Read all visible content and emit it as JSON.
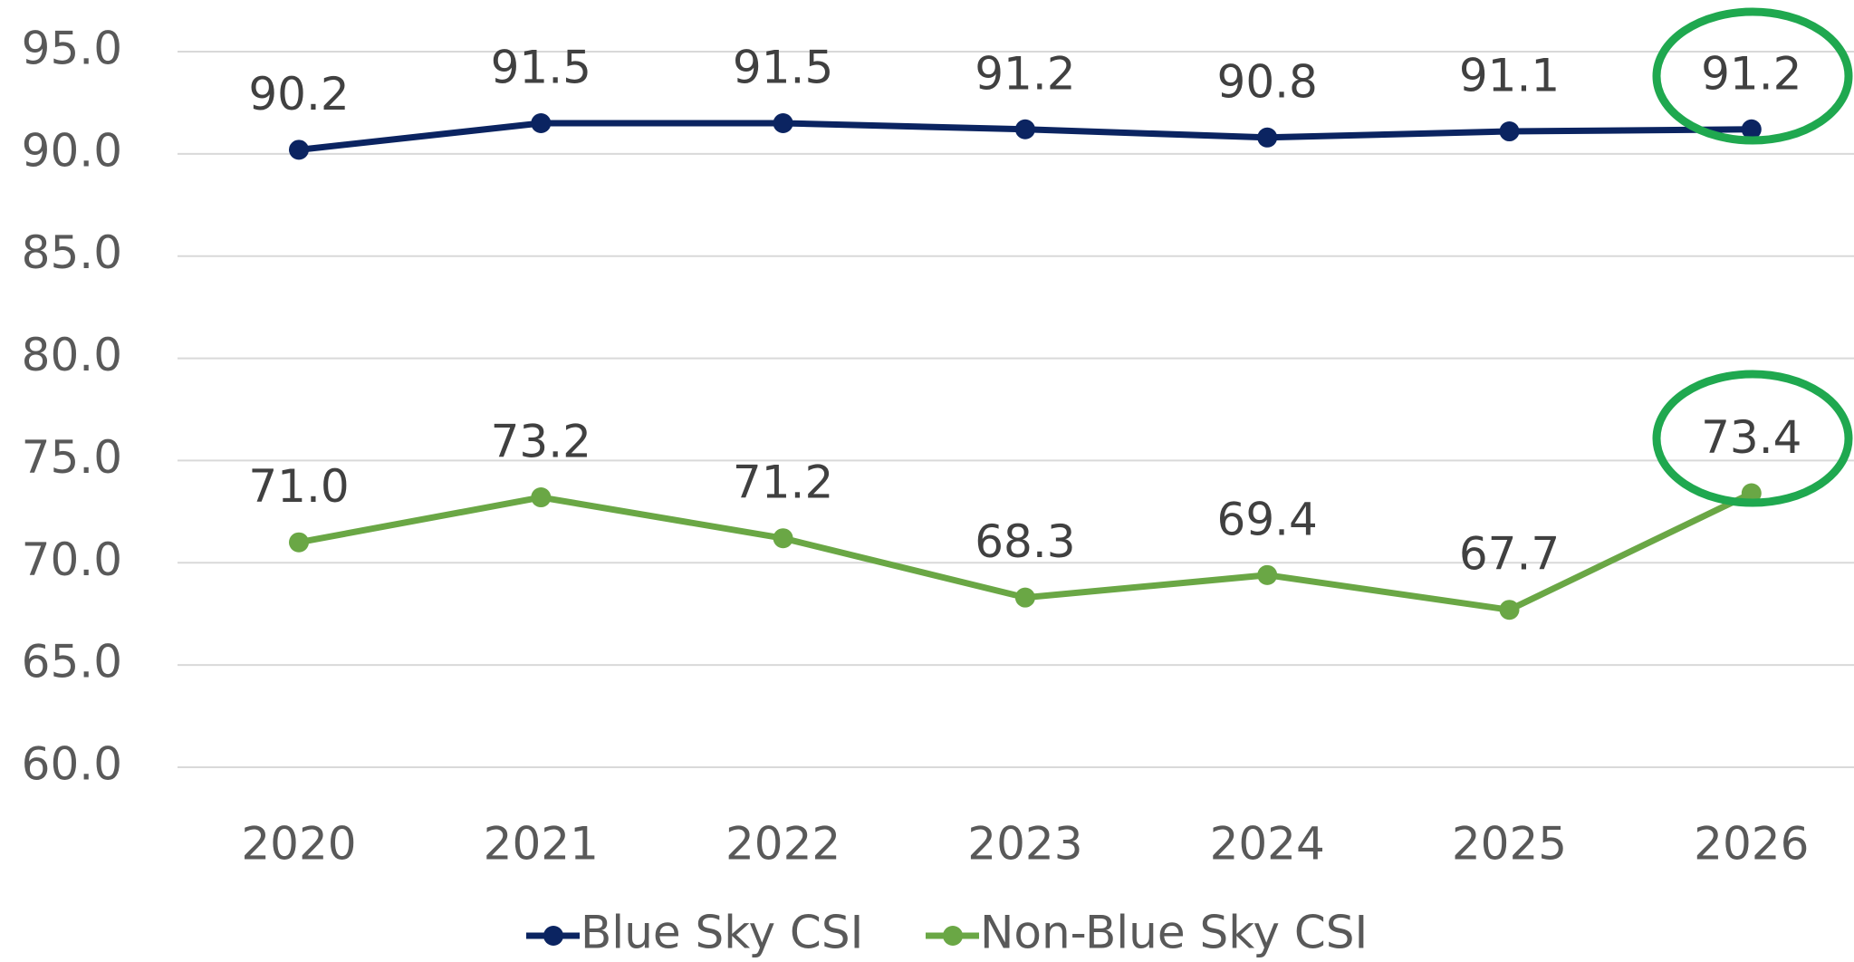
{
  "chart_data": {
    "type": "line",
    "categories": [
      "2020",
      "2021",
      "2022",
      "2023",
      "2024",
      "2025",
      "2026"
    ],
    "series": [
      {
        "name": "Blue Sky CSI",
        "color": "#0b2461",
        "values": [
          90.2,
          91.5,
          91.5,
          91.2,
          90.8,
          91.1,
          91.2
        ],
        "value_labels": [
          "90.2",
          "91.5",
          "91.5",
          "91.2",
          "90.8",
          "91.1",
          "91.2"
        ]
      },
      {
        "name": "Non-Blue Sky CSI",
        "color": "#6aa745",
        "values": [
          71.0,
          73.2,
          71.2,
          68.3,
          69.4,
          67.7,
          73.4
        ],
        "value_labels": [
          "71.0",
          "73.2",
          "71.2",
          "68.3",
          "69.4",
          "67.7",
          "73.4"
        ]
      }
    ],
    "ylim": [
      60,
      95
    ],
    "yticks": [
      {
        "value": 60,
        "label": "60.0"
      },
      {
        "value": 65,
        "label": "65.0"
      },
      {
        "value": 70,
        "label": "70.0"
      },
      {
        "value": 75,
        "label": "75.0"
      },
      {
        "value": 80,
        "label": "80.0"
      },
      {
        "value": 85,
        "label": "85.0"
      },
      {
        "value": 90,
        "label": "90.0"
      },
      {
        "value": 95,
        "label": "95.0"
      }
    ],
    "grid": true,
    "legend": "bottom"
  }
}
